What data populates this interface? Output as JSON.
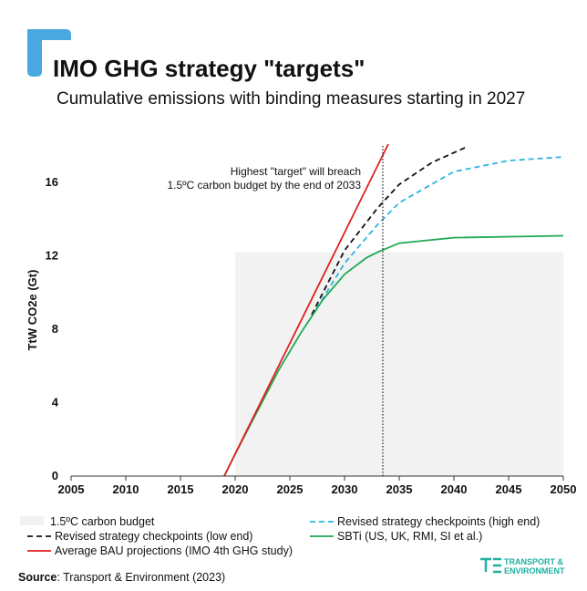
{
  "chart_data": {
    "type": "line",
    "title": "IMO GHG strategy \"targets\"",
    "subtitle": "Cumulative emissions with binding measures starting in 2027",
    "y_label": "TtW CO2e (Gt)",
    "annotation": [
      "Highest \"target\" will breach",
      "1.5ºC carbon budget by the end of 2033"
    ],
    "vline": 2033.5,
    "xlim": [
      2005,
      2050
    ],
    "xticks": [
      2005,
      2010,
      2015,
      2020,
      2025,
      2030,
      2035,
      2040,
      2045,
      2050
    ],
    "ylim": [
      0,
      18
    ],
    "yticks": [
      0,
      4,
      8,
      12,
      16
    ],
    "budget": {
      "name": "1.5ºC carbon budget",
      "color": "#f2f2f2",
      "x": [
        2020,
        2050
      ],
      "value": 12.2
    },
    "series": [
      {
        "name": "Revised strategy checkpoints (high end)",
        "color": "#2fb4e0",
        "dash": true,
        "x": [
          2027,
          2030,
          2033,
          2035,
          2040,
          2045,
          2050
        ],
        "values": [
          8.7,
          11.6,
          13.7,
          14.9,
          16.6,
          17.2,
          17.4
        ]
      },
      {
        "name": "Revised strategy checkpoints (low end)",
        "color": "#111111",
        "dash": true,
        "x": [
          2027,
          2030,
          2033,
          2035,
          2038,
          2041
        ],
        "values": [
          8.8,
          12.3,
          14.6,
          15.9,
          17.1,
          17.9
        ]
      },
      {
        "name": "SBTi (US, UK, RMI, SI et al.)",
        "color": "#1faa55",
        "dash": false,
        "x": [
          2019,
          2020,
          2022,
          2024,
          2026,
          2028,
          2030,
          2032,
          2033,
          2035,
          2040,
          2050
        ],
        "values": [
          0,
          1.2,
          3.5,
          5.8,
          7.8,
          9.6,
          11.0,
          11.9,
          12.2,
          12.7,
          13.0,
          13.1
        ]
      },
      {
        "name": "Average BAU projections (IMO 4th GHG study)",
        "color": "#e02020",
        "dash": false,
        "x": [
          2019,
          2034
        ],
        "values": [
          0,
          18.1
        ]
      }
    ],
    "source_label": "Source",
    "source": ": Transport & Environment (2023)",
    "logo": [
      "TRANSPORT &",
      "ENVIRONMENT"
    ]
  }
}
